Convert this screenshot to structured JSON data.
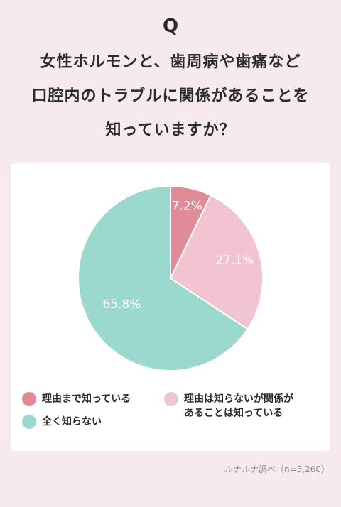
{
  "header": {
    "q_label": "Q",
    "question": "女性ホルモンと、歯周病や歯痛など\n口腔内のトラブルに関係があることを\n知っていますか？"
  },
  "chart_data": {
    "type": "pie",
    "slices": [
      {
        "name": "理由まで知っている",
        "value": 7.2,
        "label": "7.2%",
        "color": "#e08c98"
      },
      {
        "name": "理由は知らないが関係があることは知っている",
        "value": 27.1,
        "label": "27.1%",
        "color": "#f2c4d2"
      },
      {
        "name": "全く知らない",
        "value": 65.8,
        "label": "65.8%",
        "color": "#9bd9cf"
      }
    ]
  },
  "legend": {
    "items": [
      {
        "text": "理由まで知っている",
        "color": "#e08c98"
      },
      {
        "text": "理由は知らないが関係が\nあることは知っている",
        "color": "#f2c4d2"
      },
      {
        "text": "全く知らない",
        "color": "#9bd9cf"
      }
    ]
  },
  "source": "ルナルナ調べ（n=3,260）"
}
